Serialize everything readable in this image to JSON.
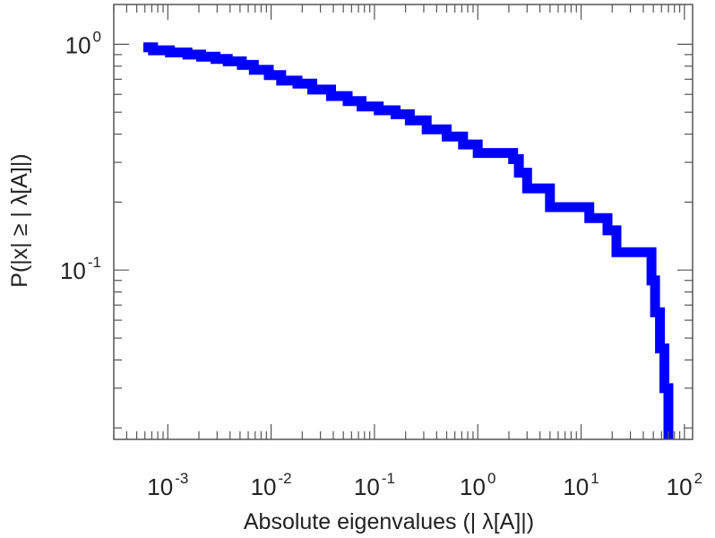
{
  "chart_data": {
    "type": "line",
    "step": true,
    "xscale": "log",
    "yscale": "log",
    "xlabel": "Absolute eigenvalues (|     λ[A]|)",
    "ylabel": "P(|x|  ≥ | λ[A]|)",
    "xlim": [
      0.0003,
      120
    ],
    "ylim": [
      0.0178,
      1.5
    ],
    "x_ticks": [
      0.001,
      0.01,
      0.1,
      1,
      10,
      100
    ],
    "x_tick_labels": [
      {
        "base": "10",
        "exp": "-3"
      },
      {
        "base": "10",
        "exp": "-2"
      },
      {
        "base": "10",
        "exp": "-1"
      },
      {
        "base": "10",
        "exp": "0"
      },
      {
        "base": "10",
        "exp": "1"
      },
      {
        "base": "10",
        "exp": "2"
      }
    ],
    "y_ticks": [
      0.1,
      1
    ],
    "y_tick_labels": [
      {
        "base": "10",
        "exp": "-1"
      },
      {
        "base": "10",
        "exp": "0"
      }
    ],
    "grid": false,
    "legend": "none",
    "series": [
      {
        "color": "#0000ff",
        "x": [
          0.00058,
          0.00072,
          0.00105,
          0.00155,
          0.0021,
          0.0029,
          0.0038,
          0.0052,
          0.0068,
          0.0095,
          0.0125,
          0.018,
          0.025,
          0.038,
          0.055,
          0.075,
          0.11,
          0.16,
          0.22,
          0.32,
          0.5,
          0.72,
          1.0,
          1.5,
          2.2,
          2.5,
          3.0,
          5.0,
          12.0,
          18.0,
          22.0,
          45.0,
          48.0,
          52.0,
          58.0,
          64.0,
          70.0
        ],
        "y": [
          0.97,
          0.94,
          0.92,
          0.9,
          0.88,
          0.86,
          0.84,
          0.81,
          0.77,
          0.73,
          0.69,
          0.67,
          0.63,
          0.59,
          0.56,
          0.53,
          0.51,
          0.49,
          0.46,
          0.42,
          0.39,
          0.36,
          0.33,
          0.33,
          0.31,
          0.27,
          0.23,
          0.19,
          0.17,
          0.15,
          0.12,
          0.12,
          0.09,
          0.065,
          0.045,
          0.03,
          0.0178
        ]
      }
    ]
  }
}
